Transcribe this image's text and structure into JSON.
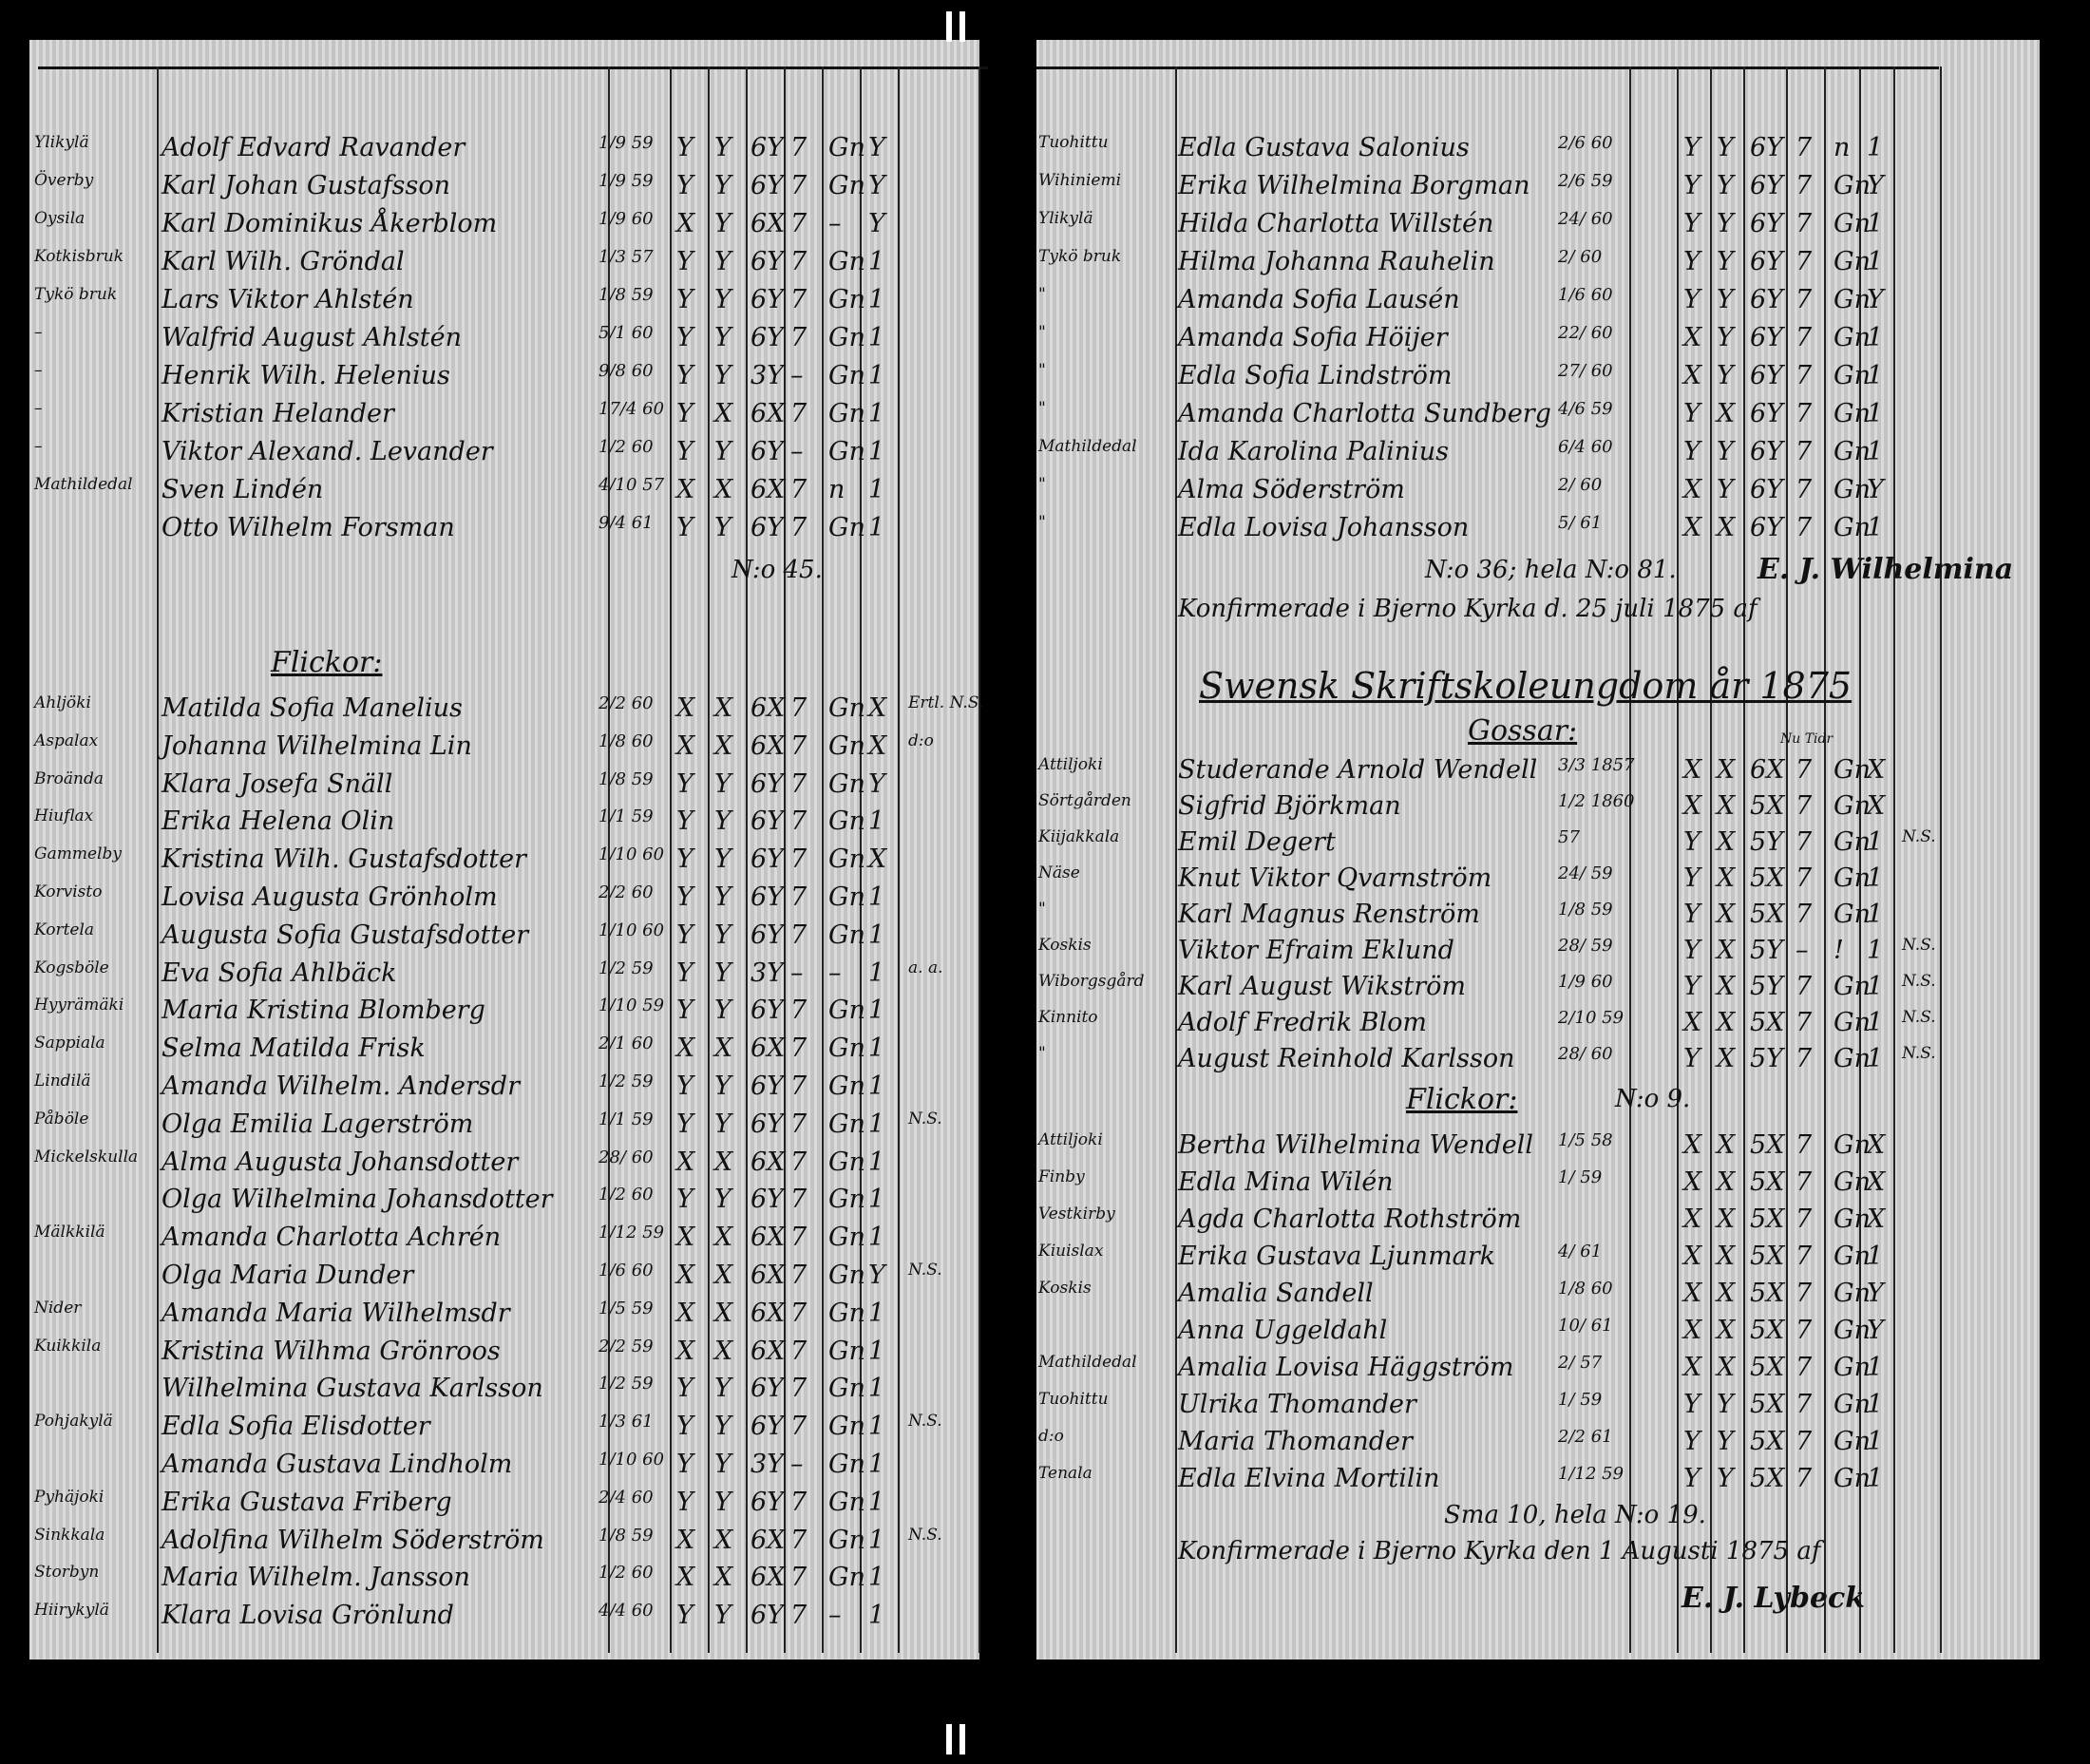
{
  "left_page": {
    "boys_rows": [
      [
        "Ylikylä",
        "Adolf Edvard Ravander",
        "1/9 59",
        "Y",
        "Y",
        "6Y",
        "7",
        "Gn",
        "Y",
        ""
      ],
      [
        "Överby",
        "Karl Johan Gustafsson",
        "1/9 59",
        "Y",
        "Y",
        "6Y",
        "7",
        "Gn",
        "Y",
        ""
      ],
      [
        "Oysila",
        "Karl Dominikus Åkerblom",
        "1/9 60",
        "X",
        "Y",
        "6X",
        "7",
        "–",
        "Y",
        ""
      ],
      [
        "Kotkisbruk",
        "Karl Wilh. Gröndal",
        "1/3 57",
        "Y",
        "Y",
        "6Y",
        "7",
        "Gn",
        "1",
        ""
      ],
      [
        "Tykö bruk",
        "Lars Viktor Ahlstén",
        "1/8 59",
        "Y",
        "Y",
        "6Y",
        "7",
        "Gn",
        "1",
        ""
      ],
      [
        "–",
        "Walfrid August Ahlstén",
        "5/1 60",
        "Y",
        "Y",
        "6Y",
        "7",
        "Gn",
        "1",
        ""
      ],
      [
        "–",
        "Henrik Wilh. Helenius",
        "9/8 60",
        "Y",
        "Y",
        "3Y",
        "–",
        "Gn",
        "1",
        ""
      ],
      [
        "–",
        "Kristian Helander",
        "17/4 60",
        "Y",
        "X",
        "6X",
        "7",
        "Gn",
        "1",
        ""
      ],
      [
        "–",
        "Viktor Alexand. Levander",
        "1/2 60",
        "Y",
        "Y",
        "6Y",
        "–",
        "Gn",
        "1",
        ""
      ],
      [
        "Mathildedal",
        "Sven Lindén",
        "4/10 57",
        "X",
        "X",
        "6X",
        "7",
        "n",
        "1",
        ""
      ],
      [
        "",
        "Otto Wilhelm Forsman",
        "9/4 61",
        "Y",
        "Y",
        "6Y",
        "7",
        "Gn",
        "1",
        ""
      ]
    ],
    "boys_total": "N:o 45.",
    "girls_heading": "Flickor:",
    "girls_rows": [
      [
        "Ahljöki",
        "Matilda Sofia Manelius",
        "2/2 60",
        "X",
        "X",
        "6X",
        "7",
        "Gn",
        "X",
        "Ertl. N.S."
      ],
      [
        "Aspalax",
        "Johanna Wilhelmina Lin",
        "1/8 60",
        "X",
        "X",
        "6X",
        "7",
        "Gn",
        "X",
        "d:o"
      ],
      [
        "Broända",
        "Klara Josefa Snäll",
        "1/8 59",
        "Y",
        "Y",
        "6Y",
        "7",
        "Gn",
        "Y",
        ""
      ],
      [
        "Hiuflax",
        "Erika Helena Olin",
        "1/1 59",
        "Y",
        "Y",
        "6Y",
        "7",
        "Gn",
        "1",
        ""
      ],
      [
        "Gammelby",
        "Kristina Wilh. Gustafsdotter",
        "1/10 60",
        "Y",
        "Y",
        "6Y",
        "7",
        "Gn",
        "X",
        ""
      ],
      [
        "Korvisto",
        "Lovisa Augusta Grönholm",
        "2/2 60",
        "Y",
        "Y",
        "6Y",
        "7",
        "Gn",
        "1",
        ""
      ],
      [
        "Kortela",
        "Augusta Sofia Gustafsdotter",
        "1/10 60",
        "Y",
        "Y",
        "6Y",
        "7",
        "Gn",
        "1",
        ""
      ],
      [
        "Kogsböle",
        "Eva Sofia Ahlbäck",
        "1/2 59",
        "Y",
        "Y",
        "3Y",
        "–",
        "–",
        "1",
        "a. a."
      ],
      [
        "Hyyrämäki",
        "Maria Kristina Blomberg",
        "1/10 59",
        "Y",
        "Y",
        "6Y",
        "7",
        "Gn",
        "1",
        ""
      ],
      [
        "Sappiala",
        "Selma Matilda Frisk",
        "2/1 60",
        "X",
        "X",
        "6X",
        "7",
        "Gn",
        "1",
        ""
      ],
      [
        "Lindilä",
        "Amanda Wilhelm. Andersdr",
        "1/2 59",
        "Y",
        "Y",
        "6Y",
        "7",
        "Gn",
        "1",
        ""
      ],
      [
        "Påböle",
        "Olga Emilia Lagerström",
        "1/1 59",
        "Y",
        "Y",
        "6Y",
        "7",
        "Gn",
        "1",
        "N.S."
      ],
      [
        "Mickelskulla",
        "Alma Augusta Johansdotter",
        "28/ 60",
        "X",
        "X",
        "6X",
        "7",
        "Gn",
        "1",
        ""
      ],
      [
        "",
        "Olga Wilhelmina Johansdotter",
        "1/2 60",
        "Y",
        "Y",
        "6Y",
        "7",
        "Gn",
        "1",
        ""
      ],
      [
        "Mälkkilä",
        "Amanda Charlotta Achrén",
        "1/12 59",
        "X",
        "X",
        "6X",
        "7",
        "Gn",
        "1",
        ""
      ],
      [
        "",
        "Olga Maria Dunder",
        "1/6 60",
        "X",
        "X",
        "6X",
        "7",
        "Gn",
        "Y",
        "N.S."
      ],
      [
        "Nider",
        "Amanda Maria Wilhelmsdr",
        "1/5 59",
        "X",
        "X",
        "6X",
        "7",
        "Gn",
        "1",
        ""
      ],
      [
        "Kuikkila",
        "Kristina Wilhma Grönroos",
        "2/2 59",
        "X",
        "X",
        "6X",
        "7",
        "Gn",
        "1",
        ""
      ],
      [
        "",
        "Wilhelmina Gustava Karlsson",
        "1/2 59",
        "Y",
        "Y",
        "6Y",
        "7",
        "Gn",
        "1",
        ""
      ],
      [
        "Pohjakylä",
        "Edla Sofia Elisdotter",
        "1/3 61",
        "Y",
        "Y",
        "6Y",
        "7",
        "Gn",
        "1",
        "N.S."
      ],
      [
        "",
        "Amanda Gustava Lindholm",
        "1/10 60",
        "Y",
        "Y",
        "3Y",
        "–",
        "Gn",
        "1",
        ""
      ],
      [
        "Pyhäjoki",
        "Erika Gustava Friberg",
        "2/4 60",
        "Y",
        "Y",
        "6Y",
        "7",
        "Gn",
        "1",
        ""
      ],
      [
        "Sinkkala",
        "Adolfina Wilhelm Söderström",
        "1/8 59",
        "X",
        "X",
        "6X",
        "7",
        "Gn",
        "1",
        "N.S."
      ],
      [
        "Storbyn",
        "Maria Wilhelm. Jansson",
        "1/2 60",
        "X",
        "X",
        "6X",
        "7",
        "Gn",
        "1",
        ""
      ],
      [
        "Hiirykylä",
        "Klara Lovisa Grönlund",
        "4/4 60",
        "Y",
        "Y",
        "6Y",
        "7",
        "–",
        "1",
        ""
      ]
    ]
  },
  "right_page": {
    "top_rows": [
      [
        "Tuohittu",
        "Edla Gustava Salonius",
        "2/6 60",
        "Y",
        "Y",
        "6Y",
        "7",
        "n",
        "1",
        ""
      ],
      [
        "Wihiniemi",
        "Erika Wilhelmina Borgman",
        "2/6 59",
        "Y",
        "Y",
        "6Y",
        "7",
        "Gn",
        "Y",
        ""
      ],
      [
        "Ylikylä",
        "Hilda Charlotta Willstén",
        "24/ 60",
        "Y",
        "Y",
        "6Y",
        "7",
        "Gn",
        "1",
        ""
      ],
      [
        "Tykö bruk",
        "Hilma Johanna Rauhelin",
        "2/ 60",
        "Y",
        "Y",
        "6Y",
        "7",
        "Gn",
        "1",
        ""
      ],
      [
        "\"",
        "Amanda Sofia Lausén",
        "1/6 60",
        "Y",
        "Y",
        "6Y",
        "7",
        "Gn",
        "Y",
        ""
      ],
      [
        "\"",
        "Amanda Sofia Höijer",
        "22/ 60",
        "X",
        "Y",
        "6Y",
        "7",
        "Gn",
        "1",
        ""
      ],
      [
        "\"",
        "Edla Sofia Lindström",
        "27/ 60",
        "X",
        "Y",
        "6Y",
        "7",
        "Gn",
        "1",
        ""
      ],
      [
        "\"",
        "Amanda Charlotta Sundberg",
        "4/6 59",
        "Y",
        "X",
        "6Y",
        "7",
        "Gn",
        "1",
        ""
      ],
      [
        "Mathildedal",
        "Ida Karolina Palinius",
        "6/4 60",
        "Y",
        "Y",
        "6Y",
        "7",
        "Gn",
        "1",
        ""
      ],
      [
        "\"",
        "Alma Söderström",
        "2/ 60",
        "X",
        "Y",
        "6Y",
        "7",
        "Gn",
        "Y",
        ""
      ],
      [
        "\"",
        "Edla Lovisa Johansson",
        "5/ 61",
        "X",
        "X",
        "6Y",
        "7",
        "Gn",
        "1",
        ""
      ]
    ],
    "top_total": "N:o 36; hela N:o 81.",
    "confirmed_1": "Konfirmerade i Bjerno Kyrka d. 25 juli 1875 af",
    "signature_1": "E. J. Wilhelmina",
    "school_heading": "Swensk Skriftskoleungdom år 1875",
    "boys_heading": "Gossar:",
    "col_note": "Nu Tidr",
    "boys_rows": [
      [
        "Attiljoki",
        "Studerande Arnold Wendell",
        "3/3 1857",
        "X",
        "X",
        "6X",
        "7",
        "Gn",
        "X",
        ""
      ],
      [
        "Sörtgården",
        "Sigfrid Björkman",
        "1/2 1860",
        "X",
        "X",
        "5X",
        "7",
        "Gn",
        "X",
        ""
      ],
      [
        "Kiijakkala",
        "Emil Degert",
        "57",
        "Y",
        "X",
        "5Y",
        "7",
        "Gn",
        "1",
        "N.S."
      ],
      [
        "Näse",
        "Knut Viktor Qvarnström",
        "24/ 59",
        "Y",
        "X",
        "5X",
        "7",
        "Gn",
        "1",
        ""
      ],
      [
        "\"",
        "Karl Magnus Renström",
        "1/8 59",
        "Y",
        "X",
        "5X",
        "7",
        "Gn",
        "1",
        ""
      ],
      [
        "Koskis",
        "Viktor Efraim Eklund",
        "28/ 59",
        "Y",
        "X",
        "5Y",
        "–",
        "!",
        "1",
        "N.S."
      ],
      [
        "Wiborgsgård",
        "Karl August Wikström",
        "1/9 60",
        "Y",
        "X",
        "5Y",
        "7",
        "Gn",
        "1",
        "N.S."
      ],
      [
        "Kinnito",
        "Adolf Fredrik Blom",
        "2/10 59",
        "X",
        "X",
        "5X",
        "7",
        "Gn",
        "1",
        "N.S."
      ],
      [
        "\"",
        "August Reinhold Karlsson",
        "28/ 60",
        "Y",
        "X",
        "5Y",
        "7",
        "Gn",
        "1",
        "N.S."
      ]
    ],
    "boys_total": "N:o 9.",
    "girls_heading": "Flickor:",
    "girls_rows": [
      [
        "Attiljoki",
        "Bertha Wilhelmina Wendell",
        "1/5 58",
        "X",
        "X",
        "5X",
        "7",
        "Gn",
        "X",
        ""
      ],
      [
        "Finby",
        "Edla Mina Wilén",
        "1/ 59",
        "X",
        "X",
        "5X",
        "7",
        "Gn",
        "X",
        ""
      ],
      [
        "Vestkirby",
        "Agda Charlotta Rothström",
        "",
        "X",
        "X",
        "5X",
        "7",
        "Gn",
        "X",
        ""
      ],
      [
        "Kiuislax",
        "Erika Gustava Ljunmark",
        "4/ 61",
        "X",
        "X",
        "5X",
        "7",
        "Gn",
        "1",
        ""
      ],
      [
        "Koskis",
        "Amalia Sandell",
        "1/8 60",
        "X",
        "X",
        "5X",
        "7",
        "Gn",
        "Y",
        ""
      ],
      [
        "",
        "Anna Uggeldahl",
        "10/ 61",
        "X",
        "X",
        "5X",
        "7",
        "Gn",
        "Y",
        ""
      ],
      [
        "Mathildedal",
        "Amalia Lovisa Häggström",
        "2/ 57",
        "X",
        "X",
        "5X",
        "7",
        "Gn",
        "1",
        ""
      ],
      [
        "Tuohittu",
        "Ulrika Thomander",
        "1/ 59",
        "Y",
        "Y",
        "5X",
        "7",
        "Gn",
        "1",
        ""
      ],
      [
        "d:o",
        "Maria Thomander",
        "2/2 61",
        "Y",
        "Y",
        "5X",
        "7",
        "Gn",
        "1",
        ""
      ],
      [
        "Tenala",
        "Edla Elvina Mortilin",
        "1/12 59",
        "Y",
        "Y",
        "5X",
        "7",
        "Gn",
        "1",
        ""
      ]
    ],
    "girls_total": "Sma 10, hela N:o 19.",
    "confirmed_2": "Konfirmerade i Bjerno Kyrka den 1 Augusti 1875 af",
    "signature_2": "E. J. Lybeck"
  }
}
